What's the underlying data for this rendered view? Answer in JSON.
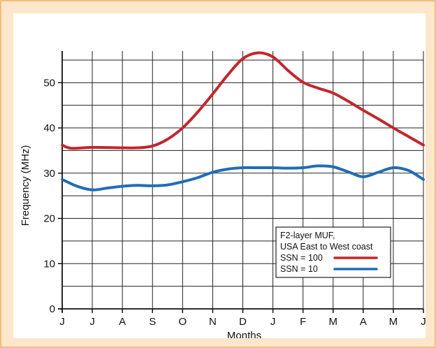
{
  "chart_data": {
    "type": "line",
    "title": "",
    "xlabel": "Months",
    "ylabel": "Frequency (MHz)",
    "categories": [
      "J",
      "J",
      "A",
      "S",
      "O",
      "N",
      "D",
      "J",
      "F",
      "M",
      "A",
      "M",
      "J"
    ],
    "ylim": [
      0,
      57
    ],
    "yticks": [
      0,
      10,
      20,
      30,
      40,
      50
    ],
    "grid": true,
    "legend": {
      "placement": "lower-right",
      "title_lines": [
        "F2-layer MUF,",
        "USA East to West coast"
      ]
    },
    "series": [
      {
        "name": "SSN = 100",
        "color": "#c1272d",
        "x": [
          0,
          0.3,
          1,
          2,
          2.5,
          3,
          3.5,
          4,
          4.5,
          5,
          5.5,
          6,
          6.5,
          7,
          7.5,
          8,
          8.5,
          9,
          9.5,
          10,
          10.5,
          11,
          11.5,
          12
        ],
        "values": [
          36.2,
          35.5,
          35.7,
          35.6,
          35.6,
          36.0,
          37.5,
          40.0,
          43.5,
          47.5,
          51.7,
          55.3,
          56.6,
          55.7,
          52.7,
          50.1,
          48.8,
          47.7,
          45.9,
          43.9,
          42.0,
          40.0,
          38.1,
          36.2
        ]
      },
      {
        "name": "SSN = 10",
        "color": "#1f6db5",
        "x": [
          0,
          0.5,
          1,
          1.5,
          2,
          2.5,
          3,
          3.5,
          4,
          4.5,
          5,
          5.5,
          6,
          6.5,
          7,
          7.5,
          8,
          8.5,
          9,
          9.5,
          10,
          10.5,
          11,
          11.5,
          12
        ],
        "values": [
          28.6,
          27.1,
          26.3,
          26.7,
          27.1,
          27.3,
          27.2,
          27.4,
          28.1,
          29.0,
          30.2,
          30.9,
          31.2,
          31.2,
          31.2,
          31.1,
          31.2,
          31.6,
          31.4,
          30.3,
          29.2,
          30.2,
          31.2,
          30.6,
          28.6
        ]
      }
    ]
  }
}
